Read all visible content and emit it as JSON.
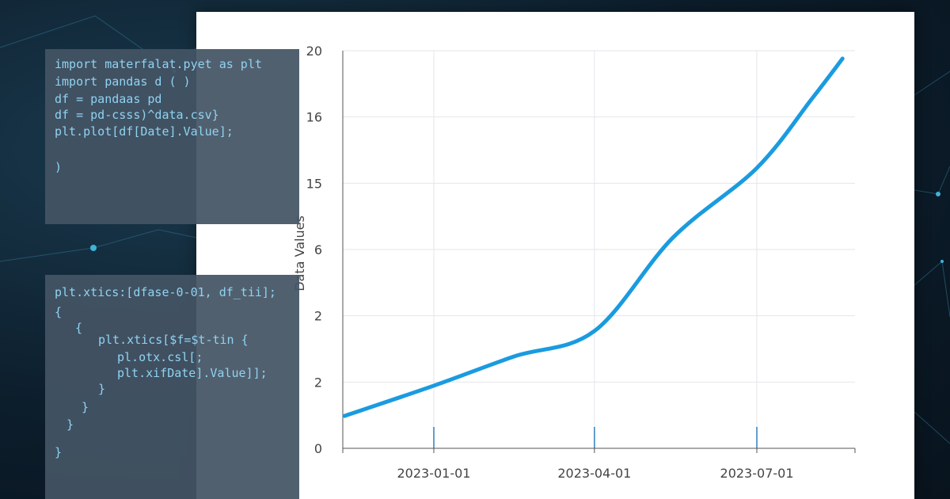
{
  "chart_data": {
    "type": "line",
    "y_label": "Data Values",
    "x": [
      "2022-11-12",
      "2023-01-01",
      "2023-02-15",
      "2023-04-01",
      "2023-05-15",
      "2023-07-01",
      "2023-08-01",
      "2023-08-18"
    ],
    "values": [
      1.63,
      3.15,
      4.62,
      5.9,
      10.6,
      14.1,
      17.6,
      19.6
    ],
    "color": "#1a9be0",
    "xlim": [
      "2022-11-11",
      "2023-08-25"
    ],
    "xticks": [
      "2023-01-01",
      "2023-04-01",
      "2023-07-01"
    ],
    "ylim": [
      0,
      20
    ],
    "yticks": [
      0,
      {
        "value": 3.333,
        "label": "2"
      },
      {
        "value": 6.667,
        "label": "2"
      },
      {
        "value": 10,
        "label": "6"
      },
      {
        "value": 13.333,
        "label": "15"
      },
      {
        "value": 16.667,
        "label": "16"
      },
      20
    ],
    "grid": true
  },
  "code_panels": [
    {
      "lines": [
        "import materfalat.pyet as plt",
        "import pandas d ( )",
        "df = pandaas pd",
        "df = pd-csss)^data.csv}",
        "plt.plot[df[Date].Value];",
        ")"
      ]
    },
    {
      "lines": [
        "plt.xtics:[dfase-0-01, df_tii];",
        "{",
        "{",
        "plt.xtics[$f=$t-tin {",
        "pl.otx.csl[;",
        "plt.xifDate].Value]];",
        "}",
        "}",
        "}",
        "}"
      ]
    }
  ]
}
